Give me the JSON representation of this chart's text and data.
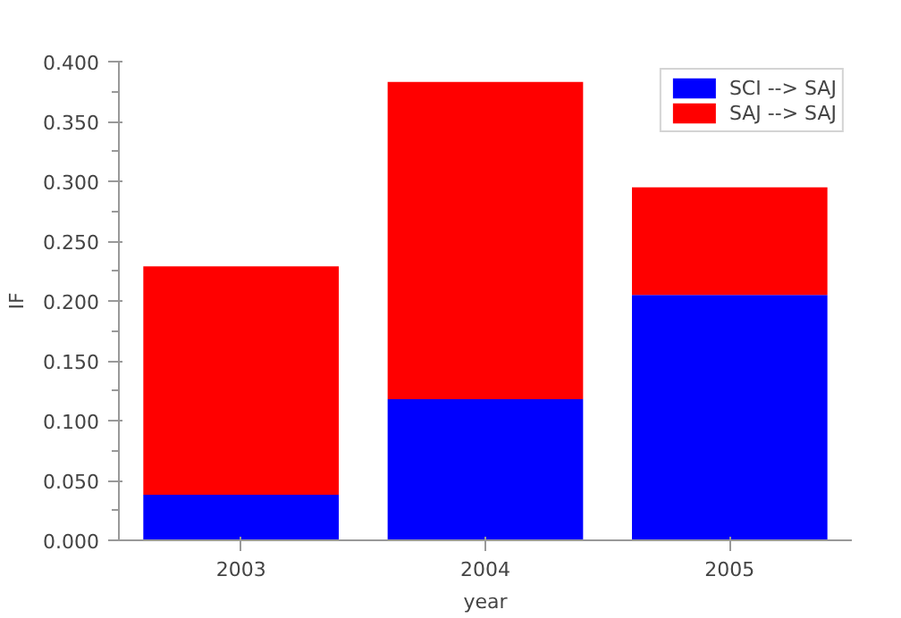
{
  "chart_data": {
    "type": "bar",
    "stacked": true,
    "xlabel": "year",
    "ylabel": "IF",
    "categories": [
      "2003",
      "2004",
      "2005"
    ],
    "series": [
      {
        "name": "SCI --> SAJ",
        "color": "#0000ff",
        "values": [
          0.038,
          0.118,
          0.205
        ]
      },
      {
        "name": "SAJ --> SAJ",
        "color": "#ff0000",
        "values": [
          0.191,
          0.265,
          0.09
        ]
      }
    ],
    "ylim": [
      0,
      0.4
    ],
    "yticks": [
      {
        "value": 0,
        "label": "0.000"
      },
      {
        "value": 0.05,
        "label": "0.050"
      },
      {
        "value": 0.1,
        "label": "0.100"
      },
      {
        "value": 0.15,
        "label": "0.150"
      },
      {
        "value": 0.2,
        "label": "0.200"
      },
      {
        "value": 0.25,
        "label": "0.250"
      },
      {
        "value": 0.3,
        "label": "0.300"
      },
      {
        "value": 0.35,
        "label": "0.350"
      },
      {
        "value": 0.4,
        "label": "0.400"
      }
    ],
    "grid": false,
    "legend": "top right"
  }
}
